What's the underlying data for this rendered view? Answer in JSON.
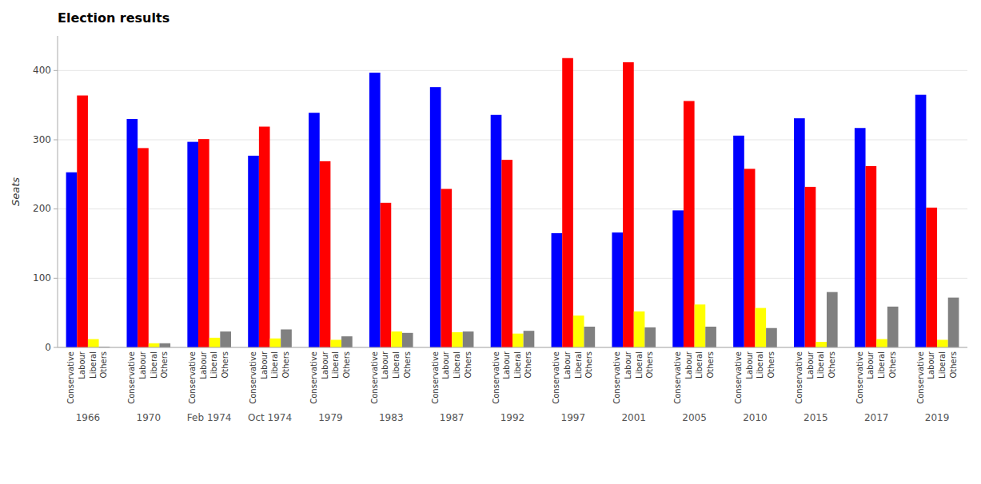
{
  "chart_data": {
    "type": "bar",
    "title": "Election results",
    "y_label": "Seats",
    "categories": [
      "1966",
      "1970",
      "Feb 1974",
      "Oct 1974",
      "1979",
      "1983",
      "1987",
      "1992",
      "1997",
      "2001",
      "2005",
      "2010",
      "2015",
      "2017",
      "2019"
    ],
    "series": [
      {
        "name": "Conservative",
        "color": "#0000ff",
        "values": [
          253,
          330,
          297,
          277,
          339,
          397,
          376,
          336,
          165,
          166,
          198,
          306,
          331,
          317,
          365
        ]
      },
      {
        "name": "Labour",
        "color": "#ff0000",
        "values": [
          364,
          288,
          301,
          319,
          269,
          209,
          229,
          271,
          418,
          412,
          356,
          258,
          232,
          262,
          202
        ]
      },
      {
        "name": "Liberal",
        "color": "#ffff00",
        "values": [
          12,
          6,
          14,
          13,
          11,
          23,
          22,
          20,
          46,
          52,
          62,
          57,
          8,
          12,
          11
        ]
      },
      {
        "name": "Others",
        "color": "#808080",
        "values": [
          1,
          6,
          23,
          26,
          16,
          21,
          23,
          24,
          30,
          29,
          30,
          28,
          80,
          59,
          72
        ]
      }
    ],
    "ylim": [
      0,
      450
    ],
    "yticks": [
      0,
      100,
      200,
      300,
      400
    ],
    "grid": true
  }
}
